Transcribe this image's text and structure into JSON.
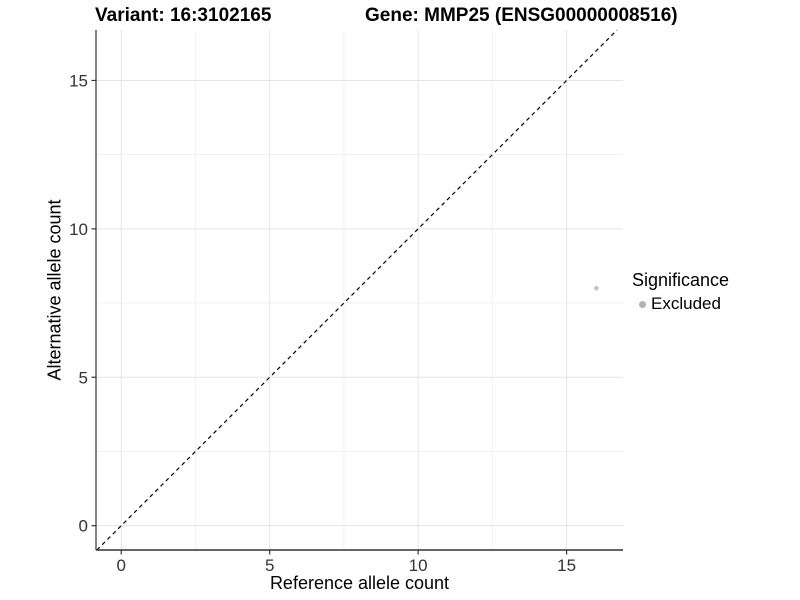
{
  "header": {
    "variant_title": "Variant: 16:3102165",
    "gene_title": "Gene: MMP25 (ENSG00000008516)"
  },
  "chart_data": {
    "type": "scatter",
    "title": "Variant: 16:3102165 — Gene: MMP25 (ENSG00000008516)",
    "xlabel": "Reference allele count",
    "ylabel": "Alternative allele count",
    "xlim": [
      -0.85,
      16.9
    ],
    "ylim": [
      -0.82,
      16.7
    ],
    "x_ticks": [
      0,
      5,
      10,
      15
    ],
    "y_ticks": [
      0,
      5,
      10,
      15
    ],
    "x_minor_ticks": [
      2.5,
      7.5,
      12.5
    ],
    "y_minor_ticks": [
      2.5,
      7.5,
      12.5
    ],
    "grid": {
      "on": true,
      "major_color": "#e4e4e4",
      "minor_color": "#f1f1f1"
    },
    "axis_color": "#333333",
    "reference_line": {
      "type": "identity y=x",
      "style": "dashed",
      "color": "#000000"
    },
    "points": [
      {
        "x": 16,
        "y": 8,
        "series": "Excluded",
        "color": "#c2c2c2"
      }
    ],
    "legend": {
      "title": "Significance",
      "position": "right",
      "items": [
        {
          "label": "Excluded",
          "color": "#b3b3b3"
        }
      ]
    }
  }
}
